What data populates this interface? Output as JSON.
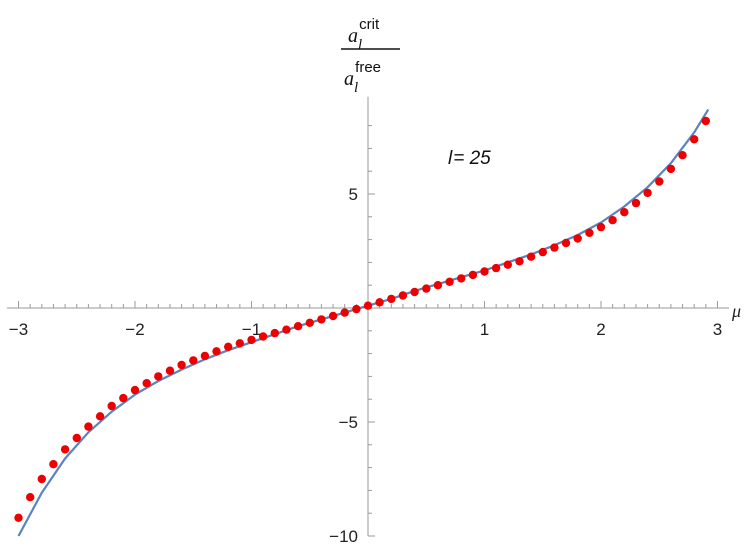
{
  "chart_data": {
    "type": "scatter",
    "xlim": [
      -3.1,
      3.1
    ],
    "ylim": [
      -10,
      9
    ],
    "x_ticks": [
      -3,
      -2,
      -1,
      1,
      2,
      3
    ],
    "x_tick_labels": [
      "−3",
      "−2",
      "−1",
      "1",
      "2",
      "3"
    ],
    "y_ticks": [
      -10,
      -5,
      5
    ],
    "y_tick_labels": [
      "−10",
      "−5",
      "5"
    ],
    "xlabel": "μ",
    "ylabel": {
      "num_base": "a",
      "num_sub": "l",
      "num_sup": "crit",
      "den_base": "a",
      "den_sub": "l",
      "den_sup": "free"
    },
    "annotation": {
      "prefix": "l",
      "suffix": "= 25"
    },
    "grid": false,
    "legend": "none",
    "series": [
      {
        "kind": "points",
        "color": "#ee0000",
        "x": [
          -3.0,
          -2.9,
          -2.8,
          -2.7,
          -2.6,
          -2.5,
          -2.4,
          -2.3,
          -2.2,
          -2.1,
          -2.0,
          -1.9,
          -1.8,
          -1.7,
          -1.6,
          -1.5,
          -1.4,
          -1.3,
          -1.2,
          -1.1,
          -1.0,
          -0.9,
          -0.8,
          -0.7,
          -0.6,
          -0.5,
          -0.4,
          -0.3,
          -0.2,
          -0.1,
          0.0,
          0.1,
          0.2,
          0.3,
          0.4,
          0.5,
          0.6,
          0.7,
          0.8,
          0.9,
          1.0,
          1.1,
          1.2,
          1.3,
          1.4,
          1.5,
          1.6,
          1.7,
          1.8,
          1.9,
          2.0,
          2.1,
          2.2,
          2.3,
          2.4,
          2.5,
          2.6,
          2.7,
          2.8,
          2.9
        ],
        "y": [
          -9.2,
          -8.3,
          -7.5,
          -6.85,
          -6.2,
          -5.7,
          -5.2,
          -4.75,
          -4.3,
          -3.95,
          -3.6,
          -3.3,
          -3.0,
          -2.75,
          -2.5,
          -2.3,
          -2.1,
          -1.9,
          -1.7,
          -1.55,
          -1.4,
          -1.25,
          -1.1,
          -0.95,
          -0.8,
          -0.65,
          -0.5,
          -0.35,
          -0.2,
          -0.05,
          0.1,
          0.25,
          0.4,
          0.55,
          0.7,
          0.85,
          1.0,
          1.15,
          1.3,
          1.45,
          1.6,
          1.75,
          1.9,
          2.05,
          2.25,
          2.45,
          2.65,
          2.85,
          3.05,
          3.3,
          3.55,
          3.85,
          4.2,
          4.6,
          5.05,
          5.55,
          6.1,
          6.7,
          7.4,
          8.2
        ]
      },
      {
        "kind": "curve",
        "color": "#5b83bd",
        "x": [
          -3.0,
          -2.8,
          -2.6,
          -2.4,
          -2.2,
          -2.0,
          -1.8,
          -1.6,
          -1.4,
          -1.2,
          -1.0,
          -0.8,
          -0.6,
          -0.4,
          -0.2,
          0.0,
          0.2,
          0.4,
          0.6,
          0.8,
          1.0,
          1.2,
          1.4,
          1.6,
          1.8,
          2.0,
          2.2,
          2.4,
          2.6,
          2.8,
          2.92
        ],
        "y": [
          -10.0,
          -8.1,
          -6.6,
          -5.45,
          -4.55,
          -3.8,
          -3.2,
          -2.7,
          -2.25,
          -1.85,
          -1.5,
          -1.15,
          -0.8,
          -0.5,
          -0.2,
          0.1,
          0.4,
          0.75,
          1.05,
          1.35,
          1.65,
          2.0,
          2.35,
          2.75,
          3.2,
          3.75,
          4.45,
          5.3,
          6.35,
          7.7,
          8.7
        ]
      }
    ]
  }
}
